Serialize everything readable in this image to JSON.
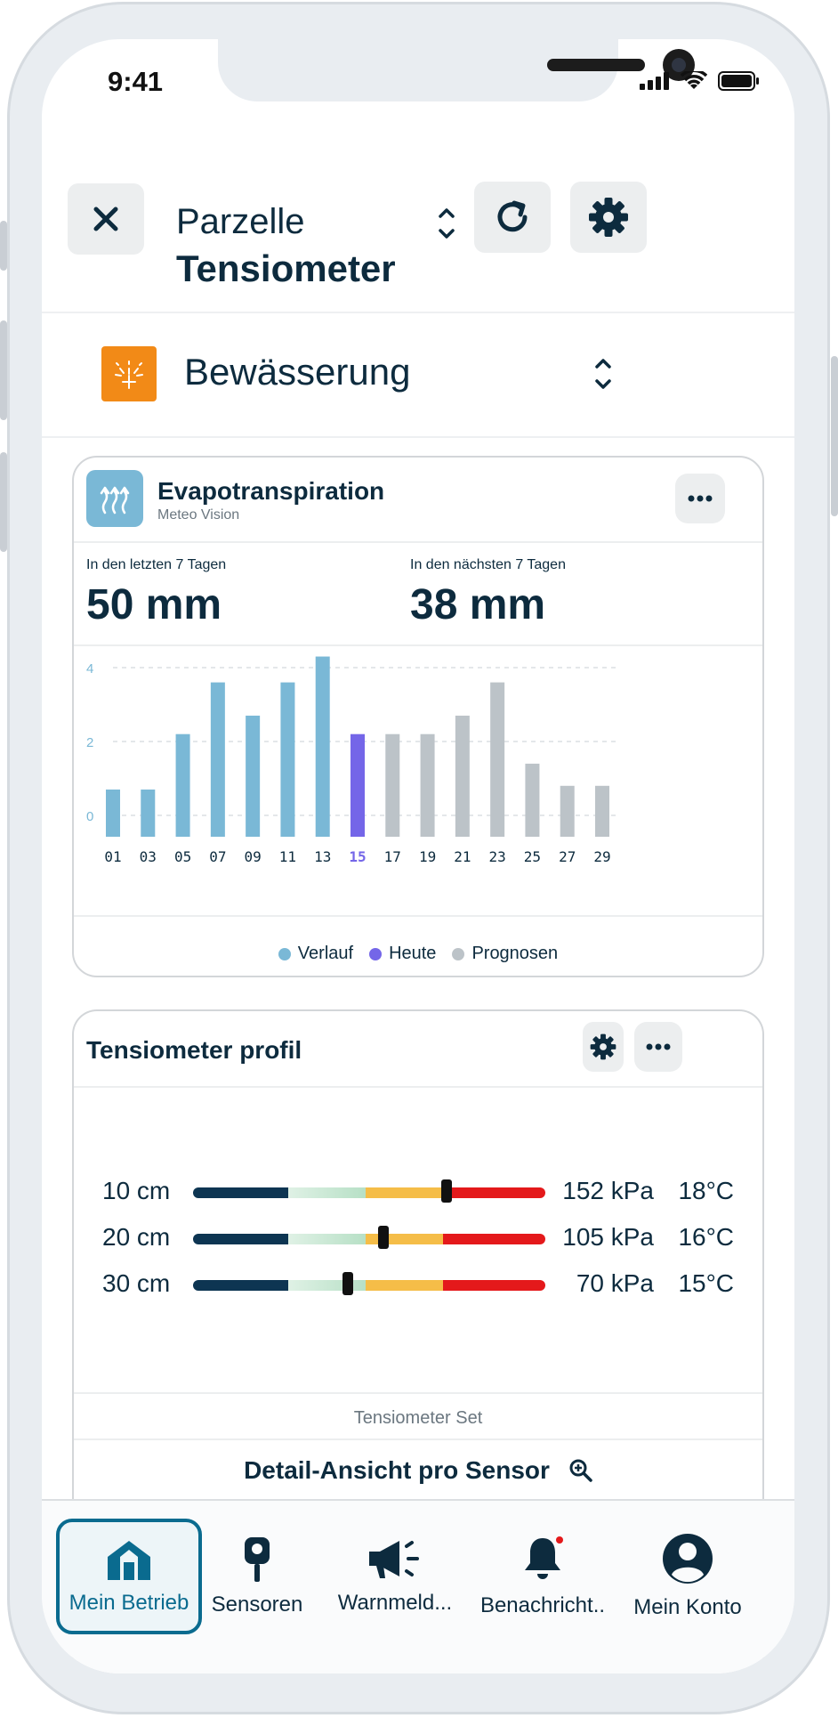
{
  "status_bar": {
    "time": "9:41"
  },
  "header": {
    "title_small": "Parzelle",
    "title_large": "Tensiometer"
  },
  "section": {
    "label": "Bewässerung",
    "icon": "irrigation-icon",
    "icon_color": "#f28a17"
  },
  "evapo_card": {
    "title": "Evapotranspiration",
    "subtitle": "Meteo Vision",
    "past_label": "In den letzten 7 Tagen",
    "past_value": "50 mm",
    "next_label": "In den nächsten 7 Tagen",
    "next_value": "38 mm"
  },
  "chart_data": {
    "type": "bar",
    "categories": [
      "01",
      "03",
      "05",
      "07",
      "09",
      "11",
      "13",
      "15",
      "17",
      "19",
      "21",
      "23",
      "25",
      "27",
      "29"
    ],
    "values": [
      0.7,
      0.7,
      2.2,
      3.6,
      2.7,
      3.6,
      4.3,
      2.2,
      2.2,
      2.2,
      2.7,
      3.6,
      1.4,
      0.8,
      0.8
    ],
    "kinds": [
      "Verlauf",
      "Verlauf",
      "Verlauf",
      "Verlauf",
      "Verlauf",
      "Verlauf",
      "Verlauf",
      "Heute",
      "Prognosen",
      "Prognosen",
      "Prognosen",
      "Prognosen",
      "Prognosen",
      "Prognosen",
      "Prognosen"
    ],
    "highlight_category": "15",
    "y_ticks": [
      "4",
      "2",
      "0"
    ],
    "ylim": [
      -0.6,
      4
    ],
    "grid": true,
    "legend": [
      {
        "name": "Verlauf",
        "color": "#7ab8d6"
      },
      {
        "name": "Heute",
        "color": "#7466e8"
      },
      {
        "name": "Prognosen",
        "color": "#bcc3c8"
      }
    ],
    "legend_position": "bottom"
  },
  "tensio_card": {
    "title": "Tensiometer profil",
    "footer": "Tensiometer Set",
    "detail_link": "Detail-Ansicht pro Sensor",
    "rows": [
      {
        "depth": "10 cm",
        "kpa": "152 kPa",
        "temp": "18°C",
        "level": 0.72
      },
      {
        "depth": "20 cm",
        "kpa": "105 kPa",
        "temp": "16°C",
        "level": 0.54
      },
      {
        "depth": "30 cm",
        "kpa": "70 kPa",
        "temp": "15°C",
        "level": 0.44
      }
    ],
    "scale_colors": [
      "#0d3552",
      "#b7e0c6",
      "#f5bd48",
      "#e4191b"
    ]
  },
  "tabbar": {
    "items": [
      {
        "label": "Mein Betrieb",
        "icon": "home-icon",
        "active": true
      },
      {
        "label": "Sensoren",
        "icon": "sensor-icon",
        "active": false
      },
      {
        "label": "Warnmeld...",
        "icon": "megaphone-icon",
        "active": false
      },
      {
        "label": "Benachricht..",
        "icon": "bell-icon",
        "active": false
      },
      {
        "label": "Mein Konto",
        "icon": "account-icon",
        "active": false
      }
    ],
    "accent": "#0a6b8f"
  }
}
